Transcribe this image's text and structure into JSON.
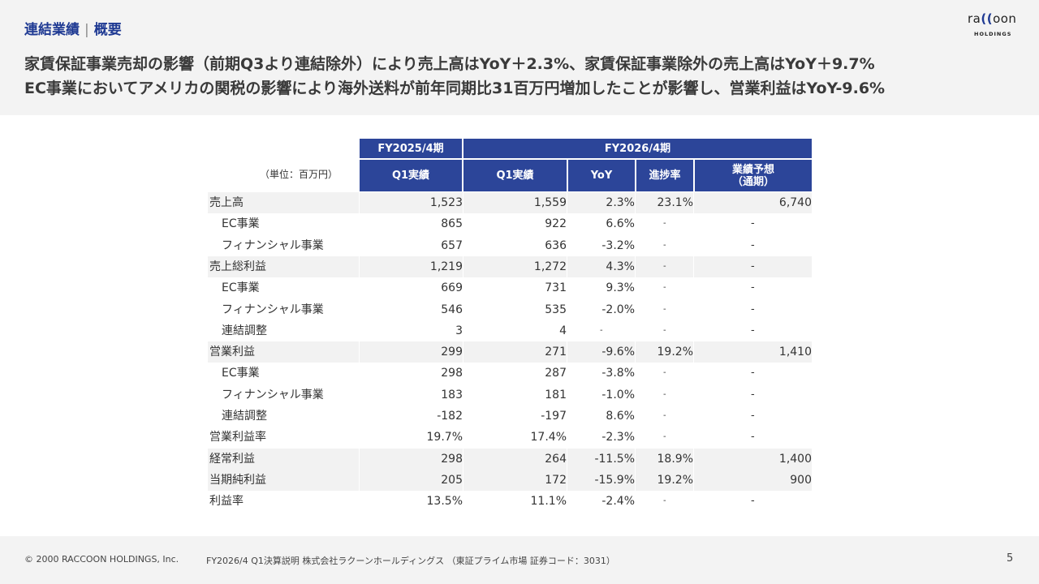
{
  "header": {
    "section": "連結業績",
    "separator": "|",
    "subsection": "概要",
    "headline_1": "家賃保証事業売却の影響（前期Q3より連結除外）により売上高はYoY＋2.3%、家賃保証事業除外の売上高はYoY＋9.7%",
    "headline_2": "EC事業においてアメリカの関税の影響により海外送料が前年同期比31百万円増加したことが影響し、営業利益はYoY-9.6%"
  },
  "logo": {
    "word_left": "ra",
    "word_arc": "((",
    "word_right": "oon",
    "sub": "HOLDINGS"
  },
  "table": {
    "unit": "（単位：百万円）",
    "group_fy2025": "FY2025/4期",
    "group_fy2026": "FY2026/4期",
    "col_prev_q1": "Q1実績",
    "col_q1": "Q1実績",
    "col_yoy": "YoY",
    "col_progress": "進捗率",
    "col_forecast_1": "業績予想",
    "col_forecast_2": "（通期）",
    "rows": [
      {
        "label": "売上高",
        "prev": "1,523",
        "cur": "1,559",
        "yoy": "2.3%",
        "progress": "23.1%",
        "forecast": "6,740"
      },
      {
        "label": "EC事業",
        "prev": "865",
        "cur": "922",
        "yoy": "6.6%",
        "progress": "-",
        "forecast": "-"
      },
      {
        "label": "フィナンシャル事業",
        "prev": "657",
        "cur": "636",
        "yoy": "-3.2%",
        "progress": "-",
        "forecast": "-"
      },
      {
        "label": "売上総利益",
        "prev": "1,219",
        "cur": "1,272",
        "yoy": "4.3%",
        "progress": "-",
        "forecast": "-"
      },
      {
        "label": "EC事業",
        "prev": "669",
        "cur": "731",
        "yoy": "9.3%",
        "progress": "-",
        "forecast": "-"
      },
      {
        "label": "フィナンシャル事業",
        "prev": "546",
        "cur": "535",
        "yoy": "-2.0%",
        "progress": "-",
        "forecast": "-"
      },
      {
        "label": "連結調整",
        "prev": "3",
        "cur": "4",
        "yoy": "-",
        "progress": "-",
        "forecast": "-"
      },
      {
        "label": "営業利益",
        "prev": "299",
        "cur": "271",
        "yoy": "-9.6%",
        "progress": "19.2%",
        "forecast": "1,410"
      },
      {
        "label": "EC事業",
        "prev": "298",
        "cur": "287",
        "yoy": "-3.8%",
        "progress": "-",
        "forecast": "-"
      },
      {
        "label": "フィナンシャル事業",
        "prev": "183",
        "cur": "181",
        "yoy": "-1.0%",
        "progress": "-",
        "forecast": "-"
      },
      {
        "label": "連結調整",
        "prev": "-182",
        "cur": "-197",
        "yoy": "8.6%",
        "progress": "-",
        "forecast": "-"
      },
      {
        "label": "営業利益率",
        "prev": "19.7%",
        "cur": "17.4%",
        "yoy": "-2.3%",
        "progress": "-",
        "forecast": "-"
      },
      {
        "label": "経常利益",
        "prev": "298",
        "cur": "264",
        "yoy": "-11.5%",
        "progress": "18.9%",
        "forecast": "1,400"
      },
      {
        "label": "当期純利益",
        "prev": "205",
        "cur": "172",
        "yoy": "-15.9%",
        "progress": "19.2%",
        "forecast": "900"
      },
      {
        "label": "利益率",
        "prev": "13.5%",
        "cur": "11.1%",
        "yoy": "-2.4%",
        "progress": "-",
        "forecast": "-"
      }
    ]
  },
  "footer": {
    "copyright": "© 2000 RACCOON HOLDINGS, Inc.",
    "doc_name": "FY2026/4 Q1決算説明 株式会社ラクーンホールディングス （東証プライム市場 証券コード：3031）",
    "page_number": "5"
  }
}
